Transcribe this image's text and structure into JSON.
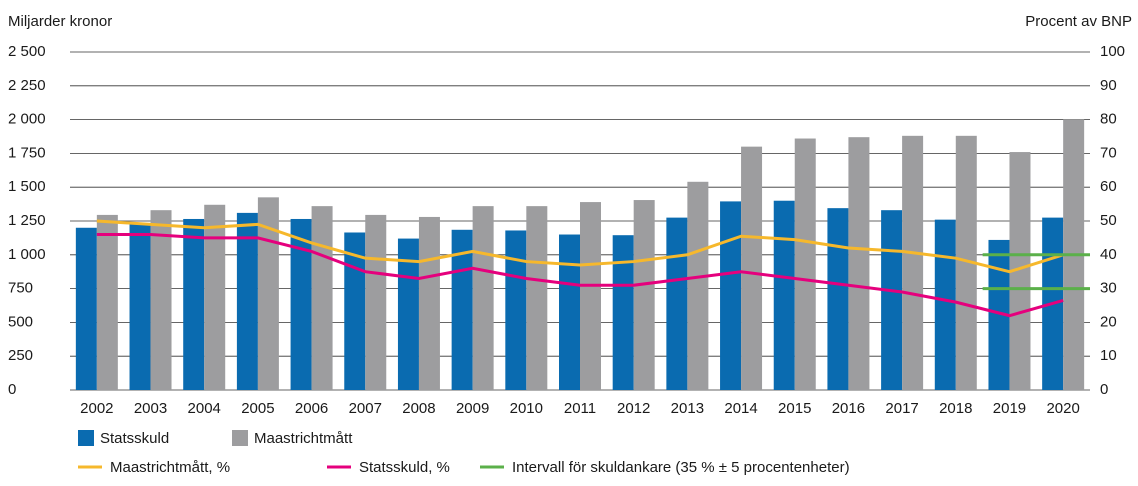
{
  "chart_data": {
    "type": "bar",
    "y_axis_label": "Miljarder kronor",
    "y2_axis_label": "Procent av BNP",
    "categories": [
      "2002",
      "2003",
      "2004",
      "2005",
      "2006",
      "2007",
      "2008",
      "2009",
      "2010",
      "2011",
      "2012",
      "2013",
      "2014",
      "2015",
      "2016",
      "2017",
      "2018",
      "2019",
      "2020"
    ],
    "series": [
      {
        "name": "Statsskuld",
        "color": "#0a6bb0",
        "kind": "bar",
        "values": [
          1200,
          1230,
          1265,
          1310,
          1265,
          1165,
          1120,
          1185,
          1180,
          1150,
          1145,
          1275,
          1395,
          1400,
          1345,
          1330,
          1260,
          1110,
          1275
        ]
      },
      {
        "name": "Maastrichtmått",
        "color": "#9d9d9f",
        "kind": "bar",
        "values": [
          1295,
          1330,
          1370,
          1425,
          1360,
          1295,
          1280,
          1360,
          1360,
          1390,
          1405,
          1540,
          1800,
          1860,
          1870,
          1880,
          1880,
          1760,
          2000
        ]
      },
      {
        "name": "Maastrichtmått, %",
        "color": "#f6b82c",
        "kind": "line",
        "axis": "y2",
        "values": [
          50,
          49,
          48,
          49,
          43.5,
          39,
          38,
          41,
          38,
          37,
          38,
          40,
          45.5,
          44.5,
          42,
          41,
          39,
          35,
          40
        ]
      },
      {
        "name": "Statsskuld, %",
        "color": "#e5007d",
        "kind": "line",
        "axis": "y2",
        "values": [
          46,
          46,
          45,
          45,
          41,
          35,
          33,
          36,
          33,
          31,
          31,
          33,
          35,
          33,
          31,
          29,
          26,
          22,
          26.5
        ]
      }
    ],
    "interval": {
      "name": "Intervall för skuldankare (35 % ± 5 procentenheter)",
      "color": "#5bb04a",
      "axis": "y2",
      "upper": [
        null,
        null,
        null,
        null,
        null,
        null,
        null,
        null,
        null,
        null,
        null,
        null,
        null,
        null,
        null,
        null,
        null,
        40,
        40
      ],
      "lower": [
        null,
        null,
        null,
        null,
        null,
        null,
        null,
        null,
        null,
        null,
        null,
        null,
        null,
        null,
        null,
        null,
        null,
        30,
        30
      ]
    },
    "ylim": [
      0,
      2500
    ],
    "yticks": [
      0,
      250,
      500,
      750,
      {
        "value": 1000,
        "label": "1 000"
      },
      {
        "value": 1250,
        "label": "1 250"
      },
      {
        "value": 1500,
        "label": "1 500"
      },
      {
        "value": 1750,
        "label": "1 750"
      },
      {
        "value": 2000,
        "label": "2 000"
      },
      {
        "value": 2250,
        "label": "2 250"
      },
      {
        "value": 2500,
        "label": "2 500"
      }
    ],
    "y2lim": [
      0,
      100
    ],
    "y2ticks": [
      0,
      10,
      20,
      30,
      40,
      50,
      60,
      70,
      80,
      90,
      100
    ],
    "grid": true
  }
}
